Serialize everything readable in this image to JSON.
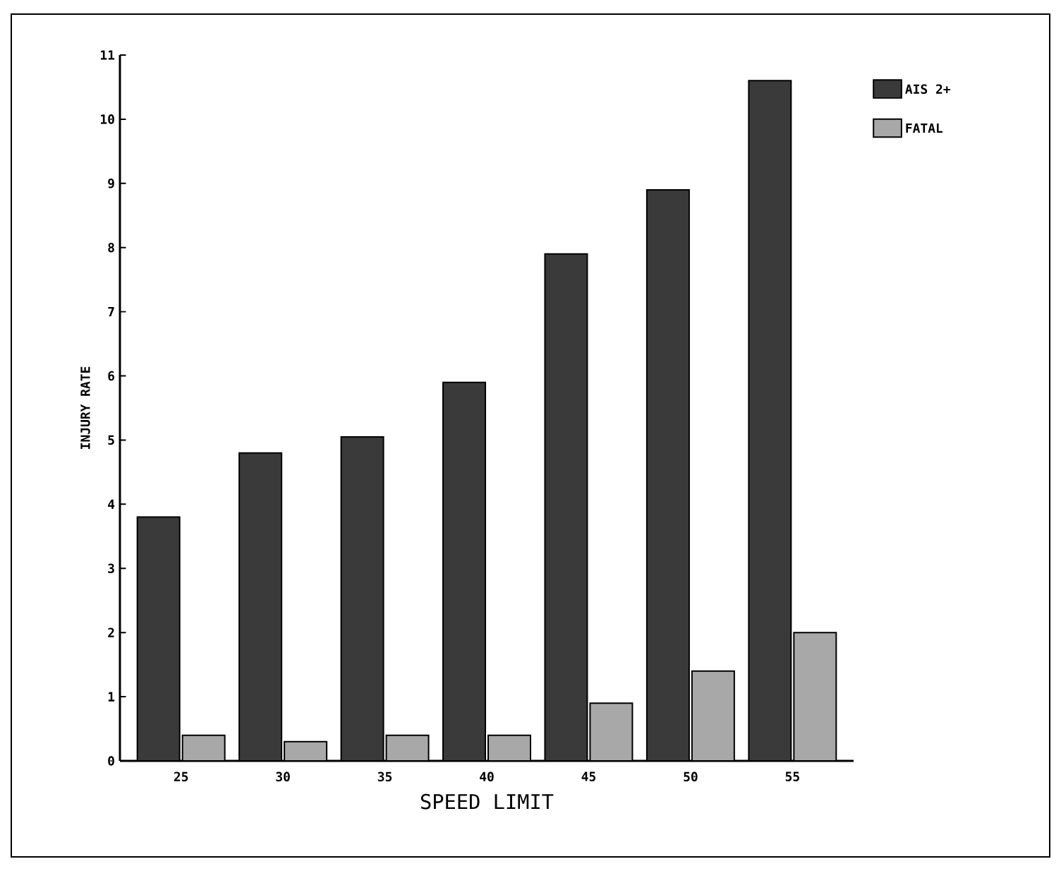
{
  "chart_data": {
    "type": "bar",
    "xlabel": "SPEED LIMIT",
    "ylabel": "INJURY RATE",
    "categories": [
      "25",
      "30",
      "35",
      "40",
      "45",
      "50",
      "55"
    ],
    "series": [
      {
        "name": "AIS 2+",
        "color": "#3a3a3a",
        "values": [
          3.8,
          4.8,
          5.05,
          5.9,
          7.9,
          8.9,
          10.6
        ]
      },
      {
        "name": "FATAL",
        "color": "#a8a8a8",
        "values": [
          0.4,
          0.3,
          0.4,
          0.4,
          0.9,
          1.4,
          2.0
        ]
      }
    ],
    "ylim": [
      0,
      11
    ],
    "yticks": [
      0,
      1,
      2,
      3,
      4,
      5,
      6,
      7,
      8,
      9,
      10,
      11
    ],
    "grid": false,
    "legend": "top right"
  }
}
